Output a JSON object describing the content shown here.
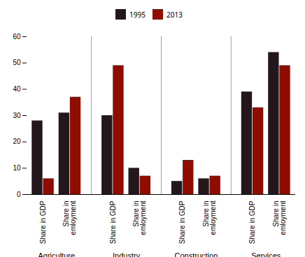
{
  "chart_data": {
    "type": "bar",
    "categories": [
      "Share in GDP",
      "Share in\nemloyment",
      "Share in GDP",
      "Share in\nemloyment",
      "Share in GDP",
      "Share in\nemloyment",
      "Share in GDP",
      "Share in\nemloyment"
    ],
    "groups": [
      "Agriculture",
      "Industry",
      "Construction",
      "Services"
    ],
    "series": [
      {
        "name": "1995",
        "values": [
          28,
          31,
          30,
          10,
          5,
          6,
          39,
          54
        ]
      },
      {
        "name": "2013",
        "values": [
          6,
          37,
          49,
          7,
          13,
          7,
          33,
          49
        ]
      }
    ],
    "ylim": [
      0,
      60
    ],
    "yticks": [
      0,
      10,
      20,
      30,
      40,
      50,
      60
    ],
    "legend": "top"
  }
}
